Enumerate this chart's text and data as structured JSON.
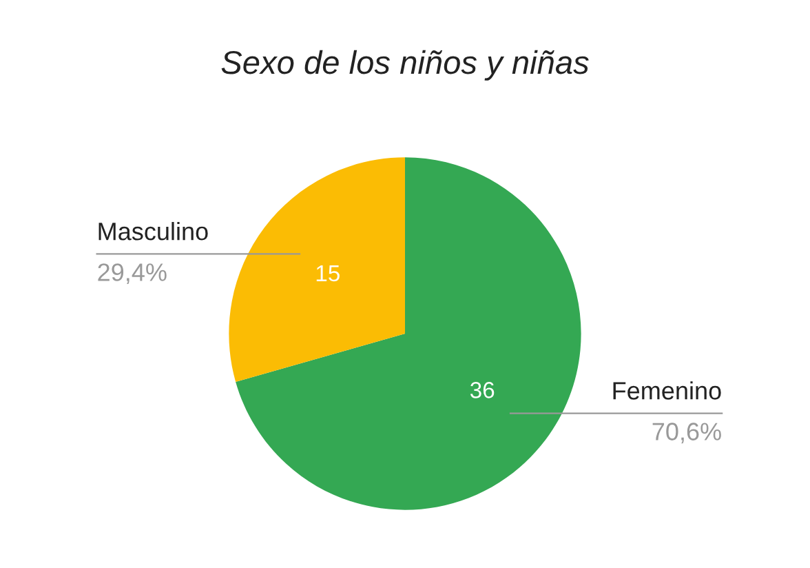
{
  "chart_data": {
    "type": "pie",
    "title": "Sexo de los niños y niñas",
    "categories": [
      "Femenino",
      "Masculino"
    ],
    "values": [
      36,
      15
    ],
    "colors": [
      "#34a853",
      "#fbbc04"
    ],
    "data_labels": true,
    "annotations": [
      {
        "text": "70,6%",
        "x": "Femenino"
      },
      {
        "text": "29,4%",
        "x": "Masculino"
      }
    ],
    "legend": false
  }
}
